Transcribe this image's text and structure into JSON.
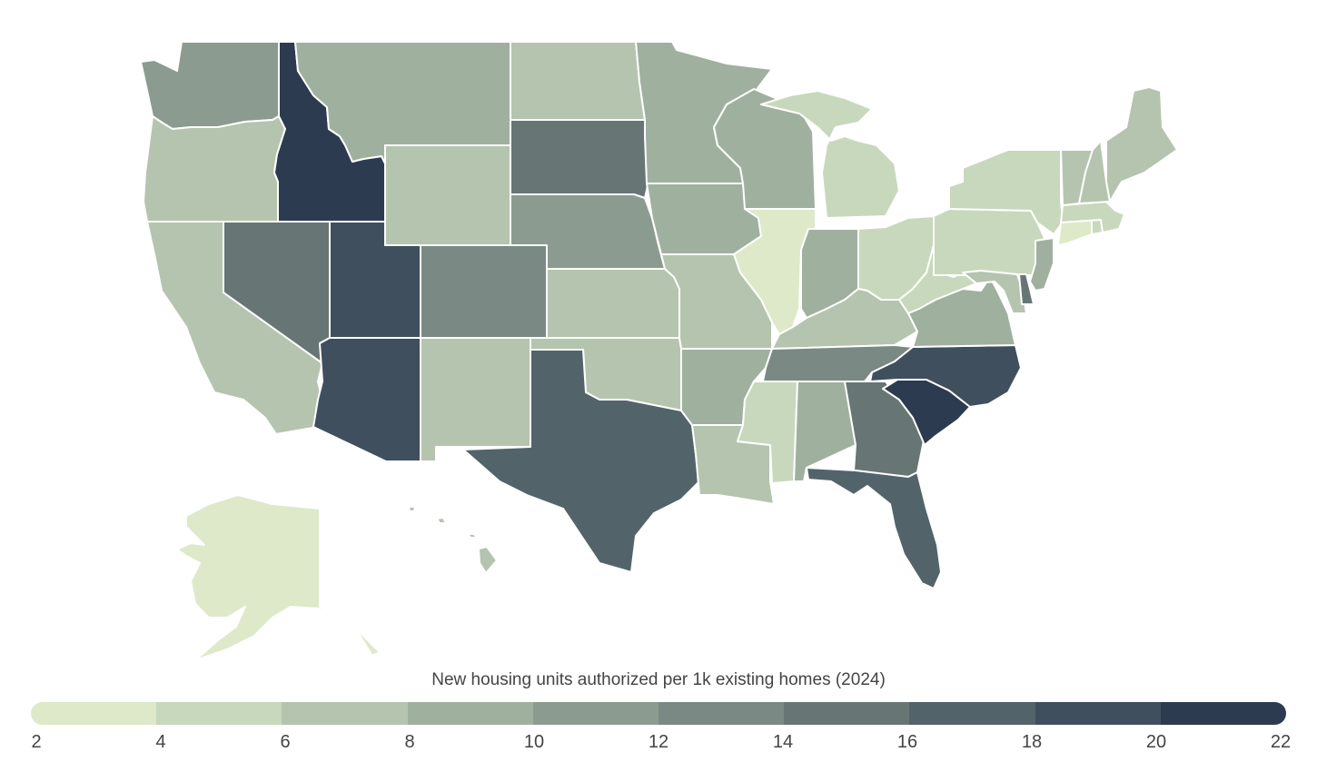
{
  "chart_data": {
    "type": "choropleth",
    "title": "New housing units authorized per 1k existing homes (2024)",
    "legend": {
      "title": "New housing units authorized per 1k existing homes (2024)",
      "ticks": [
        "2",
        "4",
        "6",
        "8",
        "10",
        "12",
        "14",
        "16",
        "18",
        "20",
        "22"
      ],
      "bins": [
        {
          "range": "2-4",
          "color": "#dde9c9"
        },
        {
          "range": "4-6",
          "color": "#c8d8bc"
        },
        {
          "range": "6-8",
          "color": "#b5c4ae"
        },
        {
          "range": "8-10",
          "color": "#a0b09f"
        },
        {
          "range": "10-12",
          "color": "#8c9b90"
        },
        {
          "range": "12-14",
          "color": "#7a8983"
        },
        {
          "range": "14-16",
          "color": "#677575"
        },
        {
          "range": "16-18",
          "color": "#53636a"
        },
        {
          "range": "18-20",
          "color": "#404f5d"
        },
        {
          "range": "20-22",
          "color": "#2c3b4f"
        }
      ]
    },
    "states": [
      {
        "abbr": "WA",
        "bin": 4,
        "range": "10-12"
      },
      {
        "abbr": "OR",
        "bin": 2,
        "range": "6-8"
      },
      {
        "abbr": "CA",
        "bin": 2,
        "range": "6-8"
      },
      {
        "abbr": "ID",
        "bin": 9,
        "range": "20-22"
      },
      {
        "abbr": "NV",
        "bin": 6,
        "range": "14-16"
      },
      {
        "abbr": "UT",
        "bin": 8,
        "range": "18-20"
      },
      {
        "abbr": "AZ",
        "bin": 8,
        "range": "18-20"
      },
      {
        "abbr": "MT",
        "bin": 3,
        "range": "8-10"
      },
      {
        "abbr": "WY",
        "bin": 2,
        "range": "6-8"
      },
      {
        "abbr": "CO",
        "bin": 5,
        "range": "12-14"
      },
      {
        "abbr": "NM",
        "bin": 2,
        "range": "6-8"
      },
      {
        "abbr": "ND",
        "bin": 2,
        "range": "6-8"
      },
      {
        "abbr": "SD",
        "bin": 6,
        "range": "14-16"
      },
      {
        "abbr": "NE",
        "bin": 4,
        "range": "10-12"
      },
      {
        "abbr": "KS",
        "bin": 2,
        "range": "6-8"
      },
      {
        "abbr": "OK",
        "bin": 2,
        "range": "6-8"
      },
      {
        "abbr": "TX",
        "bin": 7,
        "range": "16-18"
      },
      {
        "abbr": "MN",
        "bin": 3,
        "range": "8-10"
      },
      {
        "abbr": "IA",
        "bin": 3,
        "range": "8-10"
      },
      {
        "abbr": "MO",
        "bin": 2,
        "range": "6-8"
      },
      {
        "abbr": "AR",
        "bin": 3,
        "range": "8-10"
      },
      {
        "abbr": "LA",
        "bin": 2,
        "range": "6-8"
      },
      {
        "abbr": "WI",
        "bin": 3,
        "range": "8-10"
      },
      {
        "abbr": "IL",
        "bin": 0,
        "range": "2-4"
      },
      {
        "abbr": "MI",
        "bin": 1,
        "range": "4-6"
      },
      {
        "abbr": "IN",
        "bin": 3,
        "range": "8-10"
      },
      {
        "abbr": "OH",
        "bin": 1,
        "range": "4-6"
      },
      {
        "abbr": "KY",
        "bin": 2,
        "range": "6-8"
      },
      {
        "abbr": "TN",
        "bin": 5,
        "range": "12-14"
      },
      {
        "abbr": "MS",
        "bin": 1,
        "range": "4-6"
      },
      {
        "abbr": "AL",
        "bin": 3,
        "range": "8-10"
      },
      {
        "abbr": "GA",
        "bin": 6,
        "range": "14-16"
      },
      {
        "abbr": "FL",
        "bin": 7,
        "range": "16-18"
      },
      {
        "abbr": "SC",
        "bin": 9,
        "range": "20-22"
      },
      {
        "abbr": "NC",
        "bin": 8,
        "range": "18-20"
      },
      {
        "abbr": "VA",
        "bin": 3,
        "range": "8-10"
      },
      {
        "abbr": "WV",
        "bin": 1,
        "range": "4-6"
      },
      {
        "abbr": "PA",
        "bin": 1,
        "range": "4-6"
      },
      {
        "abbr": "NY",
        "bin": 1,
        "range": "4-6"
      },
      {
        "abbr": "MD",
        "bin": 2,
        "range": "6-8"
      },
      {
        "abbr": "DE",
        "bin": 6,
        "range": "14-16"
      },
      {
        "abbr": "NJ",
        "bin": 3,
        "range": "8-10"
      },
      {
        "abbr": "CT",
        "bin": 0,
        "range": "2-4"
      },
      {
        "abbr": "RI",
        "bin": 1,
        "range": "4-6"
      },
      {
        "abbr": "MA",
        "bin": 1,
        "range": "4-6"
      },
      {
        "abbr": "VT",
        "bin": 2,
        "range": "6-8"
      },
      {
        "abbr": "NH",
        "bin": 2,
        "range": "6-8"
      },
      {
        "abbr": "ME",
        "bin": 2,
        "range": "6-8"
      },
      {
        "abbr": "AK",
        "bin": 0,
        "range": "2-4"
      },
      {
        "abbr": "HI",
        "bin": 2,
        "range": "6-8"
      }
    ]
  }
}
